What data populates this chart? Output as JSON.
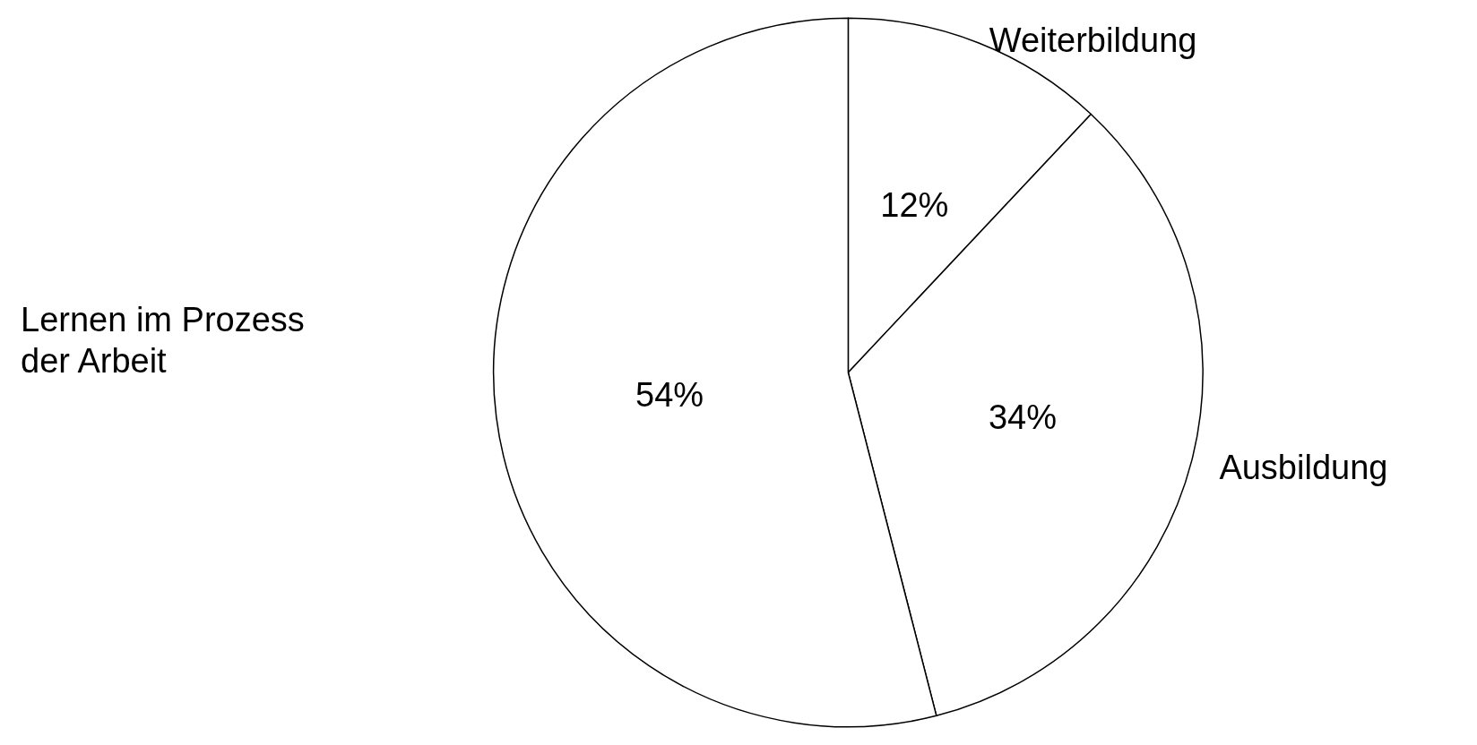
{
  "chart_data": {
    "type": "pie",
    "categories": [
      "Weiterbildung",
      "Ausbildung",
      "Lernen im Prozess der Arbeit"
    ],
    "values": [
      12,
      34,
      54
    ],
    "colors": [
      "#ffffff",
      "#ffffff",
      "#ffffff"
    ],
    "value_labels": [
      "12%",
      "34%",
      "54%"
    ],
    "legend": false
  }
}
